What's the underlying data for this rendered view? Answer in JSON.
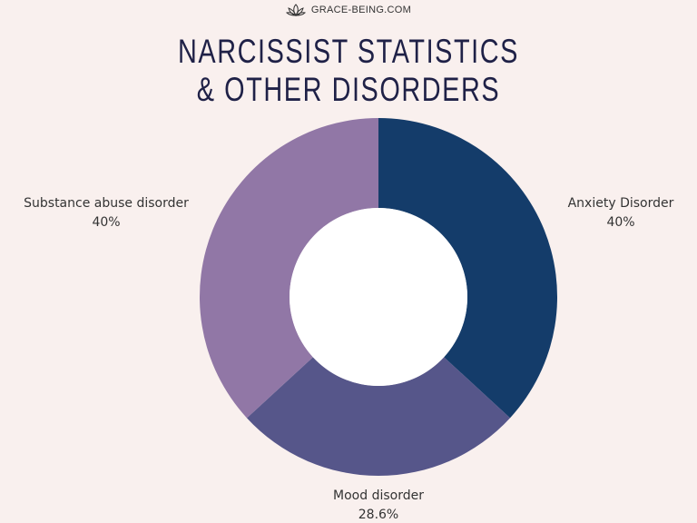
{
  "brand": {
    "logo_icon": "lotus-icon",
    "text": "GRACE-BEING.COM"
  },
  "chart_data": {
    "type": "pie",
    "variant": "donut",
    "title_line1": "NARCISSIST STATISTICS",
    "title_line2": "& OTHER DISORDERS",
    "slices": [
      {
        "label": "Anxiety Disorder",
        "value": 40,
        "value_label": "40%",
        "color": "#143c6a"
      },
      {
        "label": "Mood disorder",
        "value": 28.6,
        "value_label": "28.6%",
        "color": "#56568a"
      },
      {
        "label": "Substance abuse disorder",
        "value": 40,
        "value_label": "40%",
        "color": "#9177a6"
      }
    ],
    "start_angle_deg": 0,
    "direction": "clockwise"
  },
  "colors": {
    "background": "#f9f0ee",
    "title": "#1f2147",
    "label_text": "#333333",
    "hole": "#ffffff"
  }
}
